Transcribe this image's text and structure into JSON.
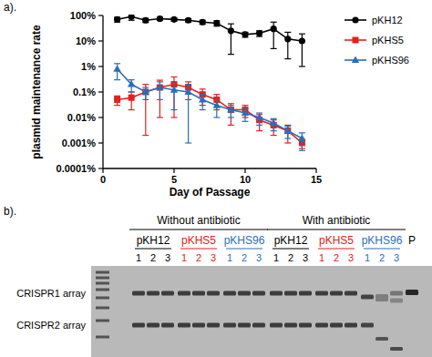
{
  "chart_data": {
    "type": "line",
    "x_label": "Day of Passage",
    "y_label": "plasmid maintenance rate",
    "x": [
      1,
      2,
      3,
      4,
      5,
      6,
      7,
      8,
      9,
      10,
      11,
      12,
      13,
      14
    ],
    "series": [
      {
        "name": "pKH12",
        "color": "#000000",
        "marker": "circle",
        "values": [
          70,
          90,
          65,
          75,
          70,
          65,
          55,
          50,
          25,
          18,
          20,
          30,
          12,
          10
        ],
        "errors": [
          15,
          25,
          12,
          10,
          10,
          10,
          10,
          12,
          22,
          4,
          5,
          25,
          10,
          9
        ]
      },
      {
        "name": "pKHS5",
        "color": "#e3201b",
        "marker": "square",
        "values": [
          0.05,
          0.06,
          0.1,
          0.15,
          0.2,
          0.15,
          0.08,
          0.05,
          0.02,
          0.02,
          0.008,
          0.005,
          0.003,
          0.001
        ],
        "errors": [
          0.02,
          0.04,
          0.098,
          0.14,
          0.19,
          0.1,
          0.05,
          0.03,
          0.015,
          0.01,
          0.005,
          0.003,
          0.002,
          0.0004
        ]
      },
      {
        "name": "pKHS96",
        "color": "#2a6ebb",
        "marker": "triangle",
        "values": [
          0.8,
          0.2,
          0.1,
          0.15,
          0.12,
          0.1,
          0.05,
          0.03,
          0.02,
          0.015,
          0.01,
          0.006,
          0.003,
          0.0015
        ],
        "errors": [
          0.5,
          0.1,
          0.05,
          0.1,
          0.1,
          0.099,
          0.03,
          0.02,
          0.01,
          0.008,
          0.005,
          0.003,
          0.0015,
          0.001
        ]
      }
    ],
    "xlim": [
      0,
      15
    ],
    "xticks": [
      0,
      5,
      10,
      15
    ],
    "ylim": [
      0.0001,
      100
    ],
    "yticks": [
      {
        "value": 100,
        "label": "100%"
      },
      {
        "value": 10,
        "label": "10%"
      },
      {
        "value": 1,
        "label": "1%"
      },
      {
        "value": 0.1,
        "label": "0.1%"
      },
      {
        "value": 0.01,
        "label": "0.01%"
      },
      {
        "value": 0.001,
        "label": "0.001%"
      },
      {
        "value": 0.0001,
        "label": "0.0001%"
      }
    ],
    "log": "y",
    "grid": false,
    "legend": "right"
  },
  "panel_labels": [
    "a).",
    "b)."
  ],
  "gel": {
    "conditions": [
      "Without antibiotic",
      "With antibiotic"
    ],
    "strains": [
      {
        "name": "pKH12",
        "color": "#000000"
      },
      {
        "name": "pKHS5",
        "color": "#e3201b"
      },
      {
        "name": "pKHS96",
        "color": "#2a6ebb"
      }
    ],
    "replicates": [
      "1",
      "2",
      "3"
    ],
    "control": "P",
    "rows": [
      "CRISPR1 array",
      "CRISPR2 array"
    ]
  }
}
